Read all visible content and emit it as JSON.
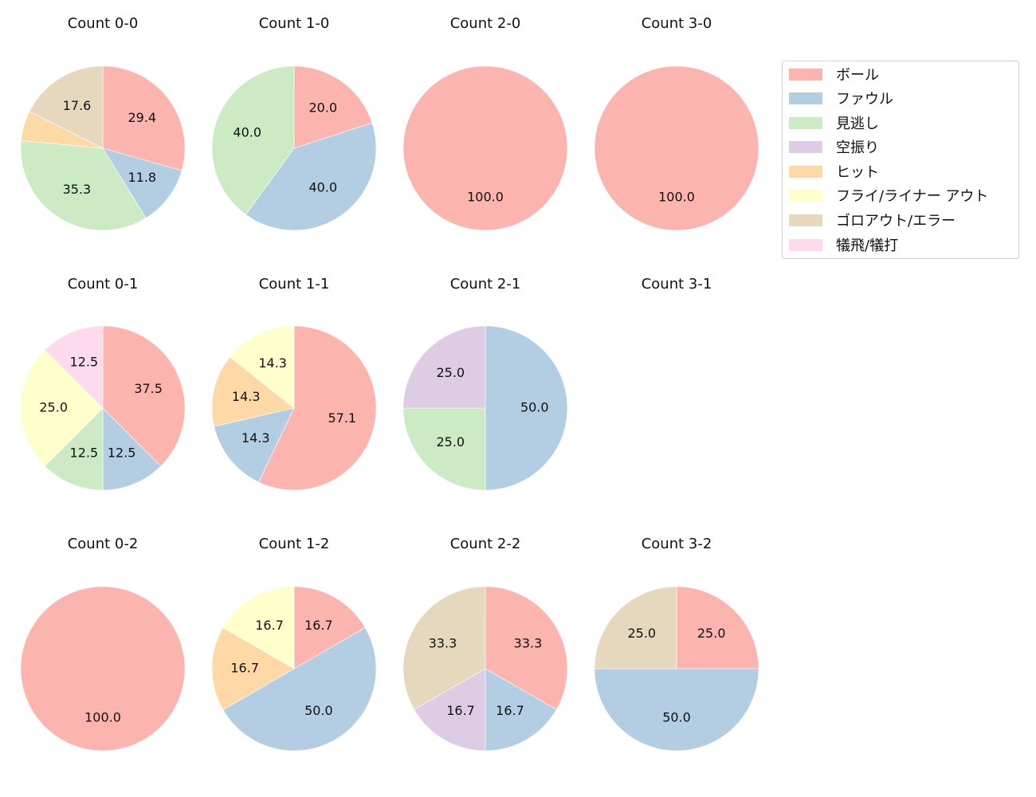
{
  "chart_data": {
    "type": "pie",
    "layout": {
      "rows": 3,
      "cols": 4,
      "legend_position": "upper right"
    },
    "categories": [
      "ボール",
      "ファウル",
      "見逃し",
      "空振り",
      "ヒット",
      "フライ/ライナー アウト",
      "ゴロアウト/エラー",
      "犠飛/犠打"
    ],
    "colors": [
      "#fbb4ae",
      "#b3cde3",
      "#ccebc5",
      "#decbe4",
      "#fed9a6",
      "#ffffcc",
      "#e5d8bd",
      "#fddaec"
    ],
    "charts": [
      {
        "title": "Count 0-0",
        "row": 0,
        "col": 0,
        "values": [
          29.4,
          11.8,
          35.3,
          0,
          5.9,
          0,
          17.6,
          0
        ],
        "labels": [
          "29.4",
          "11.8",
          "35.3",
          "",
          "",
          "",
          "17.6",
          ""
        ]
      },
      {
        "title": "Count 1-0",
        "row": 0,
        "col": 1,
        "values": [
          20.0,
          40.0,
          40.0,
          0,
          0,
          0,
          0,
          0
        ],
        "labels": [
          "20.0",
          "40.0",
          "40.0",
          "",
          "",
          "",
          "",
          ""
        ]
      },
      {
        "title": "Count 2-0",
        "row": 0,
        "col": 2,
        "values": [
          100.0,
          0,
          0,
          0,
          0,
          0,
          0,
          0
        ],
        "labels": [
          "100.0",
          "",
          "",
          "",
          "",
          "",
          "",
          ""
        ]
      },
      {
        "title": "Count 3-0",
        "row": 0,
        "col": 3,
        "values": [
          100.0,
          0,
          0,
          0,
          0,
          0,
          0,
          0
        ],
        "labels": [
          "100.0",
          "",
          "",
          "",
          "",
          "",
          "",
          ""
        ]
      },
      {
        "title": "Count 0-1",
        "row": 1,
        "col": 0,
        "values": [
          37.5,
          12.5,
          12.5,
          0,
          0,
          25.0,
          0,
          12.5
        ],
        "labels": [
          "37.5",
          "12.5",
          "12.5",
          "",
          "",
          "25.0",
          "",
          "12.5"
        ]
      },
      {
        "title": "Count 1-1",
        "row": 1,
        "col": 1,
        "values": [
          57.1,
          14.3,
          0,
          0,
          14.3,
          14.3,
          0,
          0
        ],
        "labels": [
          "57.1",
          "14.3",
          "",
          "",
          "14.3",
          "14.3",
          "",
          ""
        ]
      },
      {
        "title": "Count 2-1",
        "row": 1,
        "col": 2,
        "values": [
          0,
          50.0,
          25.0,
          25.0,
          0,
          0,
          0,
          0
        ],
        "labels": [
          "",
          "50.0",
          "25.0",
          "25.0",
          "",
          "",
          "",
          ""
        ]
      },
      {
        "title": "Count 3-1",
        "row": 1,
        "col": 3,
        "values": [],
        "labels": []
      },
      {
        "title": "Count 0-2",
        "row": 2,
        "col": 0,
        "values": [
          100.0,
          0,
          0,
          0,
          0,
          0,
          0,
          0
        ],
        "labels": [
          "100.0",
          "",
          "",
          "",
          "",
          "",
          "",
          ""
        ]
      },
      {
        "title": "Count 1-2",
        "row": 2,
        "col": 1,
        "values": [
          16.7,
          50.0,
          0,
          0,
          16.7,
          16.7,
          0,
          0
        ],
        "labels": [
          "16.7",
          "50.0",
          "",
          "",
          "16.7",
          "16.7",
          "",
          ""
        ]
      },
      {
        "title": "Count 2-2",
        "row": 2,
        "col": 2,
        "values": [
          33.3,
          16.7,
          0,
          16.7,
          0,
          0,
          33.3,
          0
        ],
        "labels": [
          "33.3",
          "16.7",
          "",
          "16.7",
          "",
          "",
          "33.3",
          ""
        ]
      },
      {
        "title": "Count 3-2",
        "row": 2,
        "col": 3,
        "values": [
          25.0,
          50.0,
          0,
          0,
          0,
          0,
          25.0,
          0
        ],
        "labels": [
          "25.0",
          "50.0",
          "",
          "",
          "",
          "",
          "25.0",
          ""
        ]
      }
    ],
    "start_angle_deg": 90,
    "direction": "clockwise"
  },
  "legend": {
    "items": [
      {
        "label": "ボール",
        "color": "#fbb4ae"
      },
      {
        "label": "ファウル",
        "color": "#b3cde3"
      },
      {
        "label": "見逃し",
        "color": "#ccebc5"
      },
      {
        "label": "空振り",
        "color": "#decbe4"
      },
      {
        "label": "ヒット",
        "color": "#fed9a6"
      },
      {
        "label": "フライ/ライナー アウト",
        "color": "#ffffcc"
      },
      {
        "label": "ゴロアウト/エラー",
        "color": "#e5d8bd"
      },
      {
        "label": "犠飛/犠打",
        "color": "#fddaec"
      }
    ]
  }
}
